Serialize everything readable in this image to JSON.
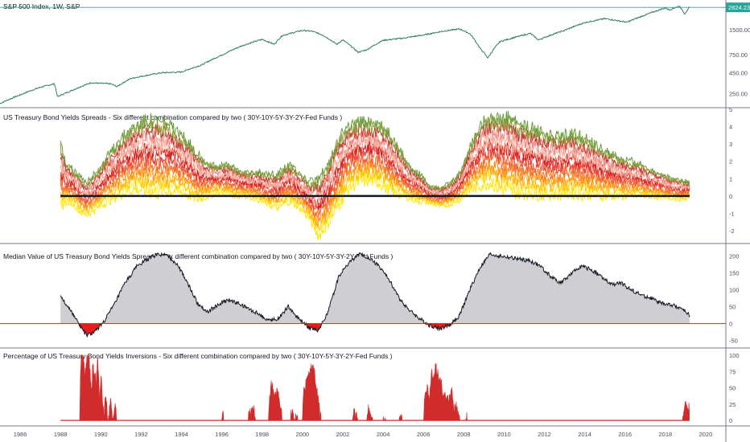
{
  "colors": {
    "spx_line": "#2e7d5b",
    "zero_line": "#131722",
    "area_fill": "#cfcfd3",
    "neg_fill": "#e81c1c",
    "inversion_fill": "#d12c2c",
    "divider": "#787b86",
    "badge": "#26a69a",
    "spread_palette": [
      "#ffe600",
      "#fff15a",
      "#ffc400",
      "#ffb020",
      "#ff8c1a",
      "#f5712f",
      "#f05d3a",
      "#e8413c",
      "#d11d1d",
      "#f6a08c",
      "#f3b4a6",
      "#f08080",
      "#c0392b",
      "#9a9a3c",
      "#6a9e3a",
      "#3f8f2f"
    ]
  },
  "chart_data": [
    {
      "id": "spx",
      "type": "line",
      "title": "S&P 500 Index, 1W, S&P",
      "scale": "log",
      "y_ticks": [
        "1500.00",
        "750.00",
        "450.00",
        "250.00"
      ],
      "last_value_label": "2824.23",
      "points": [
        [
          1985.0,
          190
        ],
        [
          1986.0,
          242
        ],
        [
          1987.0,
          300
        ],
        [
          1987.7,
          330
        ],
        [
          1987.85,
          230
        ],
        [
          1988.5,
          270
        ],
        [
          1989.5,
          340
        ],
        [
          1990.5,
          330
        ],
        [
          1990.8,
          305
        ],
        [
          1991.5,
          385
        ],
        [
          1993.0,
          450
        ],
        [
          1994.0,
          460
        ],
        [
          1995.0,
          560
        ],
        [
          1996.0,
          740
        ],
        [
          1997.0,
          960
        ],
        [
          1998.0,
          1150
        ],
        [
          1998.6,
          1000
        ],
        [
          1999.0,
          1280
        ],
        [
          2000.0,
          1480
        ],
        [
          2000.5,
          1440
        ],
        [
          2001.0,
          1300
        ],
        [
          2001.7,
          1000
        ],
        [
          2002.0,
          1130
        ],
        [
          2002.75,
          800
        ],
        [
          2003.2,
          860
        ],
        [
          2004.0,
          1120
        ],
        [
          2005.0,
          1190
        ],
        [
          2006.0,
          1300
        ],
        [
          2007.0,
          1450
        ],
        [
          2007.8,
          1540
        ],
        [
          2008.3,
          1350
        ],
        [
          2008.8,
          900
        ],
        [
          2009.2,
          680
        ],
        [
          2009.8,
          1080
        ],
        [
          2011.3,
          1360
        ],
        [
          2011.7,
          1130
        ],
        [
          2013.0,
          1480
        ],
        [
          2014.0,
          1840
        ],
        [
          2015.0,
          2060
        ],
        [
          2016.1,
          1860
        ],
        [
          2017.0,
          2280
        ],
        [
          2018.0,
          2780
        ],
        [
          2018.2,
          2630
        ],
        [
          2018.7,
          2930
        ],
        [
          2018.95,
          2350
        ],
        [
          2019.2,
          2824
        ]
      ]
    },
    {
      "id": "spreads",
      "type": "line",
      "title": "US Treasury Bond Yields Spreads - Six different combination compared by two  ( 30Y-10Y-5Y-3Y-2Y-Fed Funds )",
      "ylim": [
        -2.6,
        5.0
      ],
      "y_ticks": [
        5,
        4,
        3,
        2,
        1,
        0,
        -1,
        -2
      ],
      "series_count": 15,
      "envelope_x": [
        1988.0,
        1988.3,
        1988.6,
        1989.0,
        1989.3,
        1989.8,
        1990.3,
        1990.8,
        1991.3,
        1991.8,
        1992.3,
        1992.8,
        1993.3,
        1993.8,
        1994.3,
        1994.8,
        1995.3,
        1995.8,
        1996.3,
        1996.8,
        1997.3,
        1997.8,
        1998.3,
        1998.8,
        1999.3,
        1999.8,
        2000.3,
        2000.8,
        2001.3,
        2001.8,
        2002.3,
        2002.8,
        2003.3,
        2003.8,
        2004.3,
        2004.8,
        2005.3,
        2005.8,
        2006.3,
        2006.8,
        2007.3,
        2007.8,
        2008.3,
        2008.8,
        2009.3,
        2009.8,
        2010.3,
        2010.8,
        2011.3,
        2011.8,
        2012.3,
        2012.8,
        2013.3,
        2013.8,
        2014.3,
        2014.8,
        2015.3,
        2015.8,
        2016.3,
        2016.8,
        2017.3,
        2017.8,
        2018.3,
        2018.8,
        2019.2
      ],
      "envelope_lo": [
        -0.6,
        -0.3,
        -0.4,
        -0.9,
        -1.1,
        -0.7,
        -0.3,
        0.0,
        0.3,
        0.4,
        0.3,
        0.2,
        0.3,
        0.3,
        0.1,
        -0.2,
        0.0,
        0.2,
        0.1,
        0.0,
        0.0,
        -0.2,
        -0.5,
        -0.7,
        -0.3,
        -0.6,
        -1.2,
        -2.3,
        -1.5,
        -0.5,
        0.5,
        0.8,
        0.9,
        0.8,
        0.3,
        0.1,
        -0.1,
        -0.3,
        -0.4,
        -0.6,
        -0.5,
        -0.2,
        0.3,
        0.6,
        0.8,
        0.4,
        0.3,
        0.2,
        0.2,
        0.1,
        0.1,
        0.1,
        0.2,
        0.1,
        0.1,
        0.0,
        0.0,
        0.0,
        0.0,
        0.0,
        0.0,
        -0.1,
        -0.1,
        -0.2,
        -0.1
      ],
      "envelope_hi": [
        2.9,
        1.8,
        1.6,
        1.0,
        0.7,
        1.4,
        2.2,
        3.0,
        3.7,
        4.1,
        4.4,
        4.3,
        4.2,
        3.6,
        3.2,
        2.4,
        1.9,
        1.7,
        1.8,
        1.5,
        1.3,
        1.4,
        1.2,
        1.3,
        1.8,
        1.4,
        0.8,
        0.9,
        1.8,
        3.4,
        4.0,
        4.2,
        4.3,
        4.1,
        3.6,
        2.7,
        1.7,
        1.3,
        0.6,
        0.5,
        0.7,
        1.3,
        2.8,
        4.0,
        4.6,
        4.4,
        4.5,
        4.1,
        3.9,
        3.7,
        3.5,
        3.4,
        3.6,
        3.4,
        3.1,
        2.7,
        2.4,
        2.1,
        2.0,
        1.8,
        1.5,
        1.3,
        1.0,
        0.9,
        0.8
      ]
    },
    {
      "id": "median",
      "type": "area",
      "title": "Median Value of US Treasury Bond Yields Spreads - Six different combination compared by two  ( 30Y-10Y-5Y-3Y-2Y-Fed Funds )",
      "ylim": [
        -65,
        225
      ],
      "y_ticks": [
        200,
        150,
        100,
        50,
        0,
        -50
      ],
      "points": [
        [
          1988.0,
          80
        ],
        [
          1988.5,
          40
        ],
        [
          1989.0,
          -10
        ],
        [
          1989.3,
          -35
        ],
        [
          1989.7,
          -25
        ],
        [
          1990.2,
          10
        ],
        [
          1990.7,
          60
        ],
        [
          1991.2,
          120
        ],
        [
          1991.8,
          170
        ],
        [
          1992.3,
          190
        ],
        [
          1992.8,
          205
        ],
        [
          1993.3,
          200
        ],
        [
          1993.8,
          175
        ],
        [
          1994.3,
          120
        ],
        [
          1994.8,
          60
        ],
        [
          1995.3,
          35
        ],
        [
          1995.8,
          55
        ],
        [
          1996.3,
          70
        ],
        [
          1996.8,
          60
        ],
        [
          1997.3,
          45
        ],
        [
          1997.8,
          30
        ],
        [
          1998.3,
          10
        ],
        [
          1998.8,
          15
        ],
        [
          1999.3,
          50
        ],
        [
          1999.8,
          15
        ],
        [
          2000.3,
          -10
        ],
        [
          2000.8,
          -20
        ],
        [
          2001.3,
          40
        ],
        [
          2001.8,
          140
        ],
        [
          2002.3,
          180
        ],
        [
          2002.8,
          205
        ],
        [
          2003.3,
          195
        ],
        [
          2003.8,
          170
        ],
        [
          2004.3,
          130
        ],
        [
          2004.8,
          75
        ],
        [
          2005.3,
          40
        ],
        [
          2005.8,
          15
        ],
        [
          2006.3,
          -5
        ],
        [
          2006.8,
          -15
        ],
        [
          2007.3,
          -5
        ],
        [
          2007.8,
          25
        ],
        [
          2008.3,
          100
        ],
        [
          2008.8,
          165
        ],
        [
          2009.3,
          205
        ],
        [
          2009.8,
          200
        ],
        [
          2010.3,
          195
        ],
        [
          2010.8,
          190
        ],
        [
          2011.3,
          185
        ],
        [
          2011.8,
          170
        ],
        [
          2012.3,
          140
        ],
        [
          2012.8,
          120
        ],
        [
          2013.3,
          145
        ],
        [
          2013.8,
          170
        ],
        [
          2014.3,
          160
        ],
        [
          2014.8,
          140
        ],
        [
          2015.3,
          115
        ],
        [
          2015.8,
          120
        ],
        [
          2016.3,
          100
        ],
        [
          2016.8,
          85
        ],
        [
          2017.3,
          75
        ],
        [
          2017.8,
          60
        ],
        [
          2018.3,
          55
        ],
        [
          2018.8,
          45
        ],
        [
          2019.2,
          25
        ]
      ]
    },
    {
      "id": "inversions",
      "type": "area",
      "title": "Percentage of US Treasury Bond Yields Inversions - Six different combination compared by two  ( 30Y-10Y-5Y-3Y-2Y-Fed Funds )",
      "ylim": [
        -6,
        105
      ],
      "y_ticks": [
        100,
        75,
        50,
        25,
        0
      ],
      "points": [
        [
          1988.95,
          0
        ],
        [
          1989.0,
          90
        ],
        [
          1989.1,
          100
        ],
        [
          1989.2,
          70
        ],
        [
          1989.3,
          95
        ],
        [
          1989.4,
          100
        ],
        [
          1989.55,
          40
        ],
        [
          1989.6,
          85
        ],
        [
          1989.75,
          60
        ],
        [
          1989.85,
          95
        ],
        [
          1989.95,
          20
        ],
        [
          1990.0,
          70
        ],
        [
          1990.15,
          5
        ],
        [
          1990.25,
          45
        ],
        [
          1990.35,
          0
        ],
        [
          1990.5,
          30
        ],
        [
          1990.6,
          0
        ],
        [
          1990.7,
          25
        ],
        [
          1990.8,
          0
        ],
        [
          1991.0,
          0
        ],
        [
          1996.0,
          0
        ],
        [
          1996.05,
          10
        ],
        [
          1996.15,
          0
        ],
        [
          1997.3,
          0
        ],
        [
          1997.35,
          10
        ],
        [
          1997.55,
          20
        ],
        [
          1997.7,
          0
        ],
        [
          1998.3,
          0
        ],
        [
          1998.35,
          25
        ],
        [
          1998.45,
          55
        ],
        [
          1998.6,
          40
        ],
        [
          1998.75,
          45
        ],
        [
          1998.85,
          30
        ],
        [
          1999.0,
          0
        ],
        [
          1999.4,
          0
        ],
        [
          1999.45,
          15
        ],
        [
          1999.6,
          5
        ],
        [
          1999.8,
          0
        ],
        [
          2000.0,
          0
        ],
        [
          2000.05,
          40
        ],
        [
          2000.2,
          65
        ],
        [
          2000.4,
          80
        ],
        [
          2000.6,
          75
        ],
        [
          2000.75,
          40
        ],
        [
          2000.85,
          15
        ],
        [
          2000.95,
          0
        ],
        [
          2002.5,
          0
        ],
        [
          2002.55,
          10
        ],
        [
          2002.7,
          10
        ],
        [
          2002.75,
          0
        ],
        [
          2003.2,
          0
        ],
        [
          2003.25,
          20
        ],
        [
          2003.35,
          10
        ],
        [
          2003.5,
          0
        ],
        [
          2004.0,
          0
        ],
        [
          2004.05,
          8
        ],
        [
          2004.15,
          0
        ],
        [
          2004.8,
          0
        ],
        [
          2004.85,
          8
        ],
        [
          2004.95,
          0
        ],
        [
          2006.0,
          0
        ],
        [
          2006.05,
          35
        ],
        [
          2006.2,
          55
        ],
        [
          2006.3,
          25
        ],
        [
          2006.4,
          75
        ],
        [
          2006.5,
          60
        ],
        [
          2006.6,
          82
        ],
        [
          2006.75,
          70
        ],
        [
          2006.9,
          55
        ],
        [
          2007.0,
          40
        ],
        [
          2007.2,
          30
        ],
        [
          2007.4,
          45
        ],
        [
          2007.5,
          15
        ],
        [
          2007.6,
          25
        ],
        [
          2007.7,
          8
        ],
        [
          2007.8,
          0
        ],
        [
          2008.1,
          0
        ],
        [
          2008.15,
          5
        ],
        [
          2008.2,
          0
        ],
        [
          2018.85,
          0
        ],
        [
          2018.9,
          10
        ],
        [
          2019.0,
          25
        ],
        [
          2019.1,
          15
        ],
        [
          2019.2,
          20
        ]
      ]
    }
  ],
  "x_axis": {
    "range": [
      1985.0,
      2021.0
    ],
    "ticks": [
      "1986",
      "1988",
      "1990",
      "1992",
      "1994",
      "1996",
      "1998",
      "2000",
      "2002",
      "2004",
      "2006",
      "2008",
      "2010",
      "2012",
      "2014",
      "2016",
      "2018",
      "2020"
    ]
  }
}
